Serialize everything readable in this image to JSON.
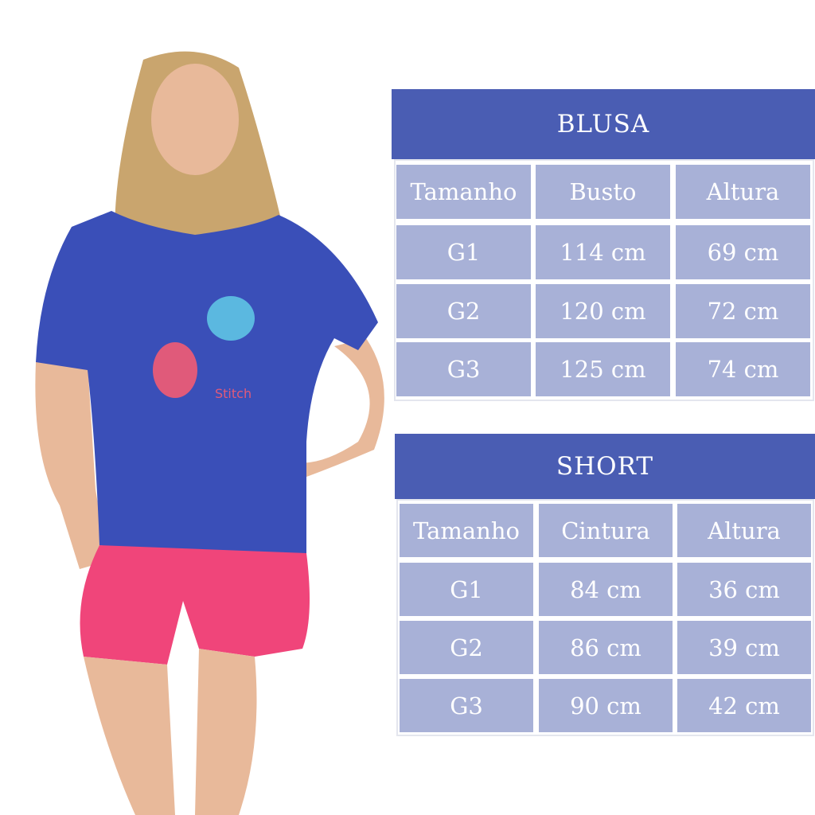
{
  "blusa": {
    "title": "BLUSA",
    "headers": [
      "Tamanho",
      "Busto",
      "Altura"
    ],
    "rows": [
      [
        "G1",
        "114 cm",
        "69 cm"
      ],
      [
        "G2",
        "120 cm",
        "72 cm"
      ],
      [
        "G3",
        "125 cm",
        "74 cm"
      ]
    ]
  },
  "short": {
    "title": "SHORT",
    "headers": [
      "Tamanho",
      "Cintura",
      "Altura"
    ],
    "rows": [
      [
        "G1",
        "84 cm",
        "36 cm"
      ],
      [
        "G2",
        "86 cm",
        "39 cm"
      ],
      [
        "G3",
        "90 cm",
        "42 cm"
      ]
    ]
  },
  "photo": {
    "shirt_print": "Stitch",
    "shirt_color": "#3a4fb8",
    "shorts_color": "#f0457a"
  },
  "colors": {
    "header": "#4a5db3",
    "cell": "#a8b1d7"
  }
}
